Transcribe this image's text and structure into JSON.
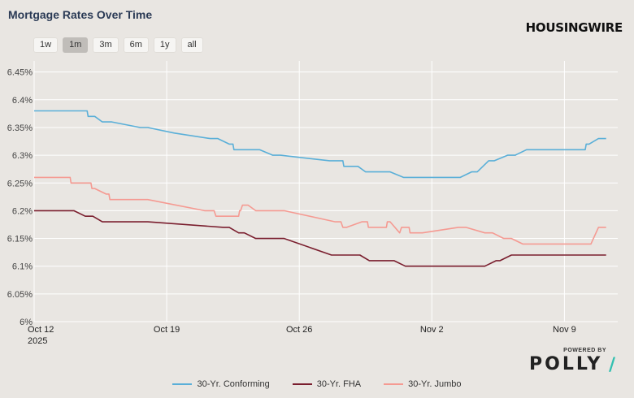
{
  "header": {
    "title": "Mortgage Rates Over Time",
    "brand": "HOUSINGWIRE",
    "ranges": [
      "1w",
      "1m",
      "3m",
      "6m",
      "1y",
      "all"
    ],
    "active_range": "1m"
  },
  "footer": {
    "powered_by": "POWERED BY",
    "polly": "POLLY",
    "polly_slash": "/"
  },
  "colors": {
    "conforming": "#5aafd8",
    "fha": "#7a1e2e",
    "jumbo": "#f59a92",
    "grid": "#ffffff",
    "background": "#e9e6e2"
  },
  "chart_data": {
    "type": "line",
    "title": "Mortgage Rates Over Time",
    "xlabel": "",
    "ylabel": "",
    "x_start_date": "2025-10-12",
    "x_range_days": [
      0,
      29.7
    ],
    "ylim": [
      6.0,
      6.47
    ],
    "y_ticks": [
      "6%",
      "6.05%",
      "6.1%",
      "6.15%",
      "6.2%",
      "6.25%",
      "6.3%",
      "6.35%",
      "6.4%",
      "6.45%"
    ],
    "y_tick_values": [
      6.0,
      6.05,
      6.1,
      6.15,
      6.2,
      6.25,
      6.3,
      6.35,
      6.4,
      6.45
    ],
    "x_ticks": [
      {
        "day": 0,
        "label": "Oct 12",
        "sublabel": "2025"
      },
      {
        "day": 7,
        "label": "Oct 19"
      },
      {
        "day": 14,
        "label": "Oct 26"
      },
      {
        "day": 21,
        "label": "Nov 2"
      },
      {
        "day": 28,
        "label": "Nov 9"
      }
    ],
    "legend_position": "bottom-center",
    "series": [
      {
        "name": "30-Yr. Conforming",
        "color": "#5aafd8",
        "points": [
          [
            0,
            6.38
          ],
          [
            2.8,
            6.38
          ],
          [
            2.85,
            6.37
          ],
          [
            3.2,
            6.37
          ],
          [
            3.6,
            6.36
          ],
          [
            4.1,
            6.36
          ],
          [
            5.6,
            6.35
          ],
          [
            6.0,
            6.35
          ],
          [
            7.4,
            6.34
          ],
          [
            9.3,
            6.33
          ],
          [
            9.7,
            6.33
          ],
          [
            10.3,
            6.32
          ],
          [
            10.5,
            6.32
          ],
          [
            10.55,
            6.31
          ],
          [
            11.9,
            6.31
          ],
          [
            12.6,
            6.3
          ],
          [
            13.0,
            6.3
          ],
          [
            15.6,
            6.29
          ],
          [
            16.3,
            6.29
          ],
          [
            16.35,
            6.28
          ],
          [
            17.1,
            6.28
          ],
          [
            17.5,
            6.27
          ],
          [
            18.8,
            6.27
          ],
          [
            19.5,
            6.26
          ],
          [
            22.5,
            6.26
          ],
          [
            23.1,
            6.27
          ],
          [
            23.4,
            6.27
          ],
          [
            24.0,
            6.29
          ],
          [
            24.3,
            6.29
          ],
          [
            25.0,
            6.3
          ],
          [
            25.4,
            6.3
          ],
          [
            26.0,
            6.31
          ],
          [
            29.1,
            6.31
          ],
          [
            29.15,
            6.32
          ],
          [
            29.3,
            6.32
          ],
          [
            29.8,
            6.33
          ],
          [
            30.2,
            6.33
          ]
        ]
      },
      {
        "name": "30-Yr. FHA",
        "color": "#7a1e2e",
        "points": [
          [
            0,
            6.2
          ],
          [
            2.1,
            6.2
          ],
          [
            2.7,
            6.19
          ],
          [
            3.1,
            6.19
          ],
          [
            3.6,
            6.18
          ],
          [
            6.0,
            6.18
          ],
          [
            10.0,
            6.17
          ],
          [
            10.3,
            6.17
          ],
          [
            10.8,
            6.16
          ],
          [
            11.1,
            6.16
          ],
          [
            11.7,
            6.15
          ],
          [
            13.2,
            6.15
          ],
          [
            15.7,
            6.12
          ],
          [
            17.2,
            6.12
          ],
          [
            17.7,
            6.11
          ],
          [
            19.0,
            6.11
          ],
          [
            19.6,
            6.1
          ],
          [
            23.8,
            6.1
          ],
          [
            24.4,
            6.11
          ],
          [
            24.6,
            6.11
          ],
          [
            25.2,
            6.12
          ],
          [
            30.2,
            6.12
          ]
        ]
      },
      {
        "name": "30-Yr. Jumbo",
        "color": "#f59a92",
        "points": [
          [
            0,
            6.26
          ],
          [
            1.9,
            6.26
          ],
          [
            1.95,
            6.25
          ],
          [
            3.0,
            6.25
          ],
          [
            3.05,
            6.24
          ],
          [
            3.2,
            6.24
          ],
          [
            3.8,
            6.23
          ],
          [
            3.95,
            6.23
          ],
          [
            4.0,
            6.22
          ],
          [
            4.5,
            6.22
          ],
          [
            5.2,
            6.22
          ],
          [
            6.0,
            6.22
          ],
          [
            9.0,
            6.2
          ],
          [
            9.5,
            6.2
          ],
          [
            9.6,
            6.19
          ],
          [
            10.8,
            6.19
          ],
          [
            10.85,
            6.2
          ],
          [
            10.9,
            6.2
          ],
          [
            11.0,
            6.21
          ],
          [
            11.3,
            6.21
          ],
          [
            11.7,
            6.2
          ],
          [
            13.2,
            6.2
          ],
          [
            15.9,
            6.18
          ],
          [
            16.2,
            6.18
          ],
          [
            16.3,
            6.17
          ],
          [
            16.5,
            6.17
          ],
          [
            17.3,
            6.18
          ],
          [
            17.6,
            6.18
          ],
          [
            17.65,
            6.17
          ],
          [
            18.6,
            6.17
          ],
          [
            18.65,
            6.18
          ],
          [
            18.8,
            6.18
          ],
          [
            19.3,
            6.16
          ],
          [
            19.4,
            6.17
          ],
          [
            19.8,
            6.17
          ],
          [
            19.85,
            6.16
          ],
          [
            20.5,
            6.16
          ],
          [
            22.4,
            6.17
          ],
          [
            22.8,
            6.17
          ],
          [
            23.8,
            6.16
          ],
          [
            24.2,
            6.16
          ],
          [
            24.8,
            6.15
          ],
          [
            25.2,
            6.15
          ],
          [
            25.8,
            6.14
          ],
          [
            29.0,
            6.14
          ],
          [
            29.4,
            6.14
          ],
          [
            29.8,
            6.17
          ],
          [
            30.2,
            6.17
          ]
        ]
      }
    ]
  }
}
